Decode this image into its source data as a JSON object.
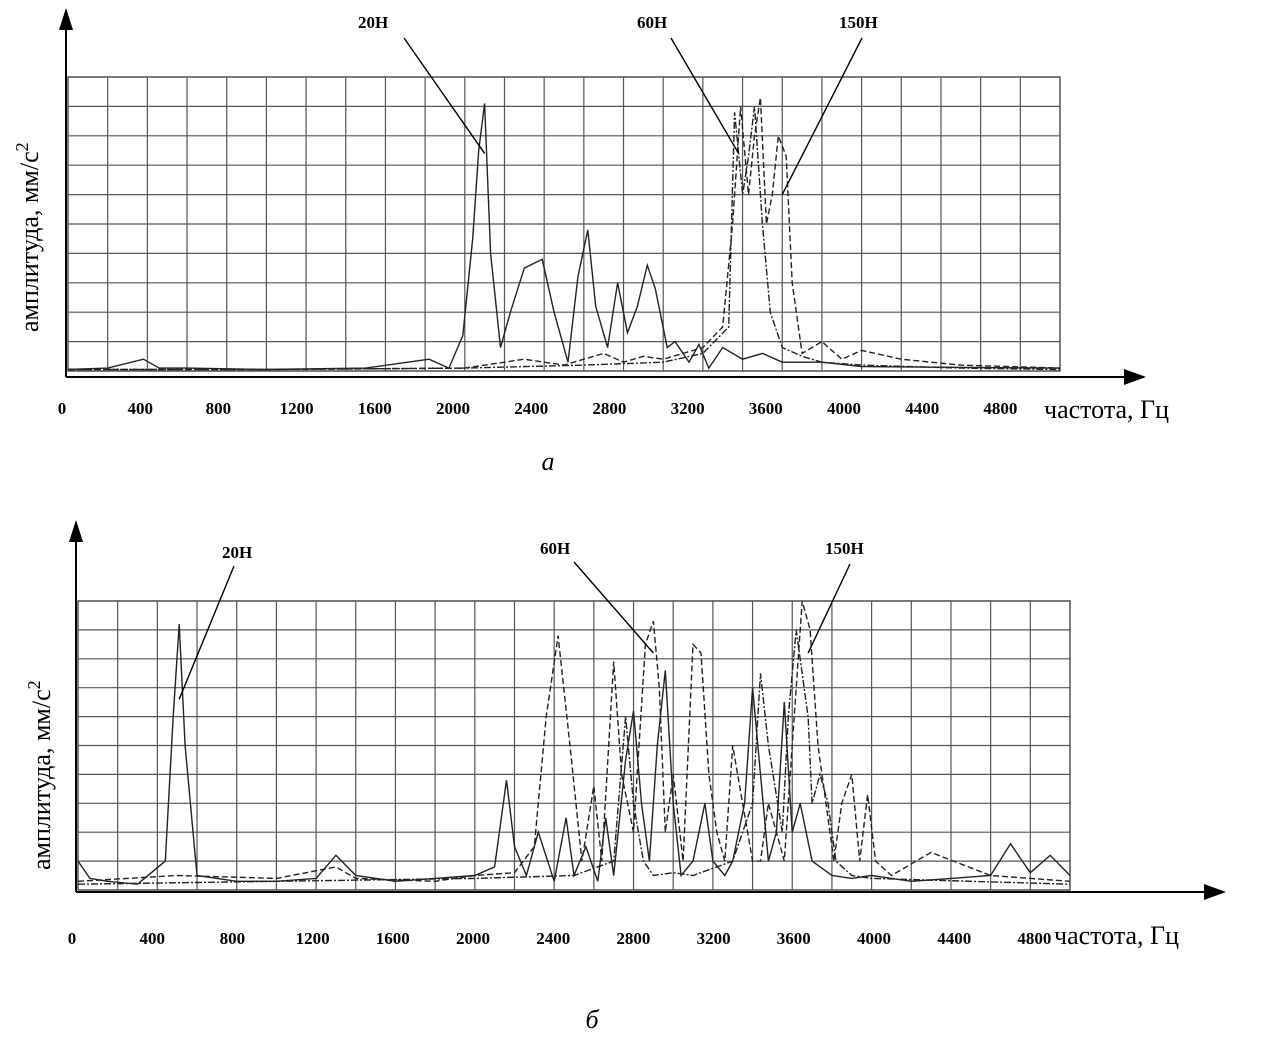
{
  "chart_data": [
    {
      "type": "line",
      "caption": "а",
      "xlabel": "частота, Гц",
      "ylabel": "амплитуда, мм/с",
      "ylabel_sup": "2",
      "x_ticks": [
        "0",
        "400",
        "800",
        "1200",
        "1600",
        "2000",
        "2400",
        "2800",
        "3200",
        "3600",
        "4000",
        "4400",
        "4800"
      ],
      "xlim": [
        0,
        5000
      ],
      "ylim": [
        0,
        10
      ],
      "grid": true,
      "annotations": [
        {
          "label": "20Н",
          "x": 2100,
          "y": 7.4
        },
        {
          "label": "60Н",
          "x": 3380,
          "y": 7.4
        },
        {
          "label": "150Н",
          "x": 3600,
          "y": 6.0
        }
      ],
      "series": [
        {
          "style": "solid",
          "x": [
            0,
            200,
            380,
            460,
            600,
            1000,
            1500,
            1820,
            1920,
            1990,
            2040,
            2070,
            2100,
            2130,
            2180,
            2230,
            2300,
            2390,
            2450,
            2520,
            2570,
            2620,
            2660,
            2720,
            2770,
            2820,
            2870,
            2920,
            2960,
            3020,
            3060,
            3130,
            3180,
            3230,
            3300,
            3400,
            3500,
            3600,
            3800,
            4000,
            5000
          ],
          "y": [
            0.05,
            0.1,
            0.4,
            0.1,
            0.1,
            0.05,
            0.1,
            0.4,
            0.1,
            1.2,
            4.5,
            7.5,
            9.1,
            4,
            0.8,
            2,
            3.5,
            3.8,
            2,
            0.3,
            3.2,
            4.8,
            2.2,
            0.8,
            3,
            1.3,
            2.2,
            3.6,
            2.8,
            0.8,
            1,
            0.3,
            0.9,
            0.1,
            0.8,
            0.4,
            0.6,
            0.3,
            0.3,
            0.15,
            0.1
          ]
        },
        {
          "style": "dash",
          "x": [
            0,
            1000,
            2000,
            2300,
            2500,
            2600,
            2700,
            2800,
            2900,
            3000,
            3100,
            3200,
            3300,
            3350,
            3390,
            3430,
            3460,
            3490,
            3520,
            3550,
            3580,
            3620,
            3650,
            3700,
            3800,
            3900,
            4000,
            4200,
            4500,
            5000
          ],
          "y": [
            0.05,
            0.05,
            0.1,
            0.4,
            0.2,
            0.4,
            0.6,
            0.3,
            0.5,
            0.4,
            0.6,
            0.8,
            1.5,
            5,
            9,
            6,
            8,
            9.3,
            5,
            6,
            8,
            7.3,
            3,
            0.6,
            1,
            0.4,
            0.7,
            0.4,
            0.2,
            0.1
          ]
        },
        {
          "style": "dashdot",
          "x": [
            0,
            1000,
            2000,
            2600,
            3000,
            3200,
            3330,
            3360,
            3400,
            3430,
            3460,
            3500,
            3540,
            3600,
            3700,
            3800,
            4000,
            4500,
            5000
          ],
          "y": [
            0.05,
            0.05,
            0.1,
            0.2,
            0.3,
            0.6,
            1.5,
            8.8,
            6,
            7.3,
            9,
            5,
            2,
            0.8,
            0.5,
            0.3,
            0.2,
            0.1,
            0.05
          ]
        }
      ]
    },
    {
      "type": "line",
      "caption": "б",
      "xlabel": "частота, Гц",
      "ylabel": "амплитуда, мм/с",
      "ylabel_sup": "2",
      "x_ticks": [
        "0",
        "400",
        "800",
        "1200",
        "1600",
        "2000",
        "2400",
        "2800",
        "3200",
        "3600",
        "4000",
        "4400",
        "4800"
      ],
      "xlim": [
        0,
        5000
      ],
      "ylim": [
        0,
        10
      ],
      "grid": true,
      "annotations": [
        {
          "label": "20Н",
          "x": 510,
          "y": 6.6
        },
        {
          "label": "60Н",
          "x": 2900,
          "y": 8.2
        },
        {
          "label": "150Н",
          "x": 3680,
          "y": 8.2
        }
      ],
      "series": [
        {
          "style": "solid",
          "x": [
            0,
            60,
            150,
            300,
            440,
            480,
            510,
            540,
            600,
            800,
            1000,
            1200,
            1300,
            1400,
            1600,
            1800,
            2000,
            2100,
            2160,
            2200,
            2260,
            2320,
            2400,
            2460,
            2500,
            2560,
            2620,
            2660,
            2700,
            2760,
            2800,
            2840,
            2880,
            2920,
            2960,
            3000,
            3040,
            3100,
            3160,
            3200,
            3260,
            3300,
            3360,
            3400,
            3440,
            3480,
            3520,
            3560,
            3600,
            3640,
            3700,
            3800,
            3900,
            4000,
            4200,
            4400,
            4600,
            4700,
            4800,
            4900,
            5000
          ],
          "y": [
            1,
            0.4,
            0.3,
            0.2,
            1,
            6,
            9.2,
            5,
            0.5,
            0.3,
            0.3,
            0.4,
            1.2,
            0.5,
            0.3,
            0.4,
            0.5,
            0.8,
            3.8,
            1.5,
            0.5,
            2,
            0.3,
            2.5,
            0.5,
            1.5,
            0.3,
            2.5,
            0.5,
            4.5,
            6.2,
            3,
            1,
            5,
            7.6,
            3,
            0.5,
            1,
            3,
            1,
            0.5,
            1,
            3,
            7,
            4,
            1,
            2,
            6.5,
            2,
            3,
            1,
            0.5,
            0.4,
            0.5,
            0.3,
            0.4,
            0.5,
            1.6,
            0.6,
            1.2,
            0.5
          ]
        },
        {
          "style": "dash",
          "x": [
            0,
            500,
            1000,
            1300,
            1400,
            1800,
            2000,
            2200,
            2300,
            2360,
            2420,
            2480,
            2540,
            2600,
            2640,
            2700,
            2740,
            2800,
            2860,
            2900,
            2930,
            2960,
            3000,
            3050,
            3100,
            3140,
            3180,
            3220,
            3260,
            3300,
            3350,
            3400,
            3440,
            3480,
            3520,
            3560,
            3600,
            3650,
            3690,
            3730,
            3770,
            3810,
            3850,
            3900,
            3940,
            3980,
            4020,
            4100,
            4300,
            4600,
            5000
          ],
          "y": [
            0.3,
            0.5,
            0.4,
            0.8,
            0.4,
            0.3,
            0.5,
            0.6,
            1.5,
            6,
            8.8,
            5,
            1,
            3.6,
            1,
            7.9,
            4,
            2,
            8.5,
            9.3,
            7,
            2,
            4,
            1,
            8.5,
            8.2,
            4,
            2,
            1,
            5,
            3,
            1,
            1,
            3,
            2,
            1,
            5,
            10,
            9,
            5,
            3,
            1,
            3,
            4,
            1,
            3.3,
            1,
            0.5,
            1.3,
            0.5,
            0.3
          ]
        },
        {
          "style": "dashdot",
          "x": [
            0,
            1000,
            2000,
            2500,
            2700,
            2760,
            2800,
            2850,
            2900,
            3000,
            3100,
            3300,
            3400,
            3440,
            3480,
            3550,
            3580,
            3620,
            3680,
            3700,
            3740,
            3780,
            3820,
            3900,
            4000,
            4500,
            5000
          ],
          "y": [
            0.2,
            0.3,
            0.4,
            0.5,
            1,
            6,
            3,
            1,
            0.5,
            0.6,
            0.5,
            1,
            3,
            7.5,
            5,
            2,
            6,
            9,
            6,
            3,
            4,
            3,
            1,
            0.5,
            0.4,
            0.3,
            0.2
          ]
        }
      ]
    }
  ]
}
